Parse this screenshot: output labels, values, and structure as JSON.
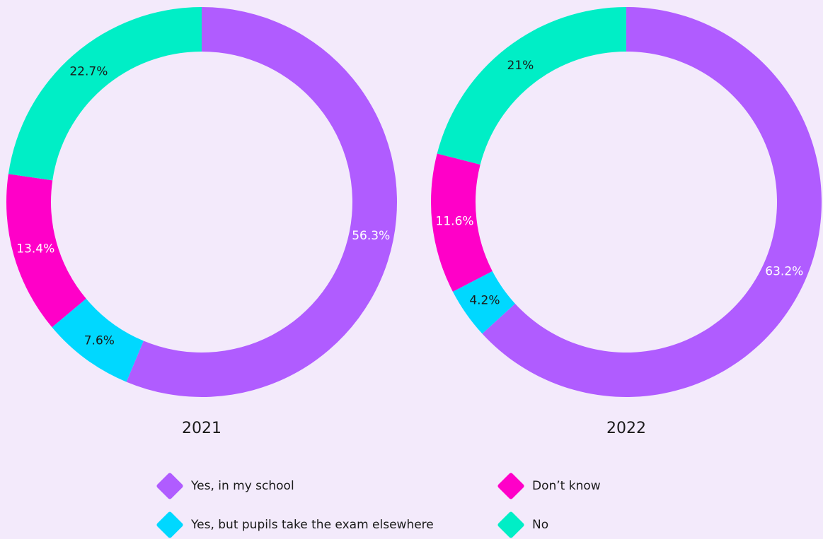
{
  "chart_data": [
    {
      "type": "pie",
      "title": "2021",
      "categories": [
        "Yes, in my school",
        "Yes, but pupils take the exam elsewhere",
        "Don’t know",
        "No"
      ],
      "values": [
        56.3,
        7.6,
        13.4,
        22.7
      ],
      "value_labels": [
        "56.3%",
        "7.6%",
        "13.4%",
        "22.7%"
      ],
      "colors": [
        "#b05cff",
        "#00d8ff",
        "#ff00c8",
        "#00eec6"
      ]
    },
    {
      "type": "pie",
      "title": "2022",
      "categories": [
        "Yes, in my school",
        "Yes, but pupils take the exam elsewhere",
        "Don’t know",
        "No"
      ],
      "values": [
        63.2,
        4.2,
        11.6,
        21
      ],
      "value_labels": [
        "63.2%",
        "4.2%",
        "11.6%",
        "21%"
      ],
      "colors": [
        "#b05cff",
        "#00d8ff",
        "#ff00c8",
        "#00eec6"
      ]
    }
  ]
}
